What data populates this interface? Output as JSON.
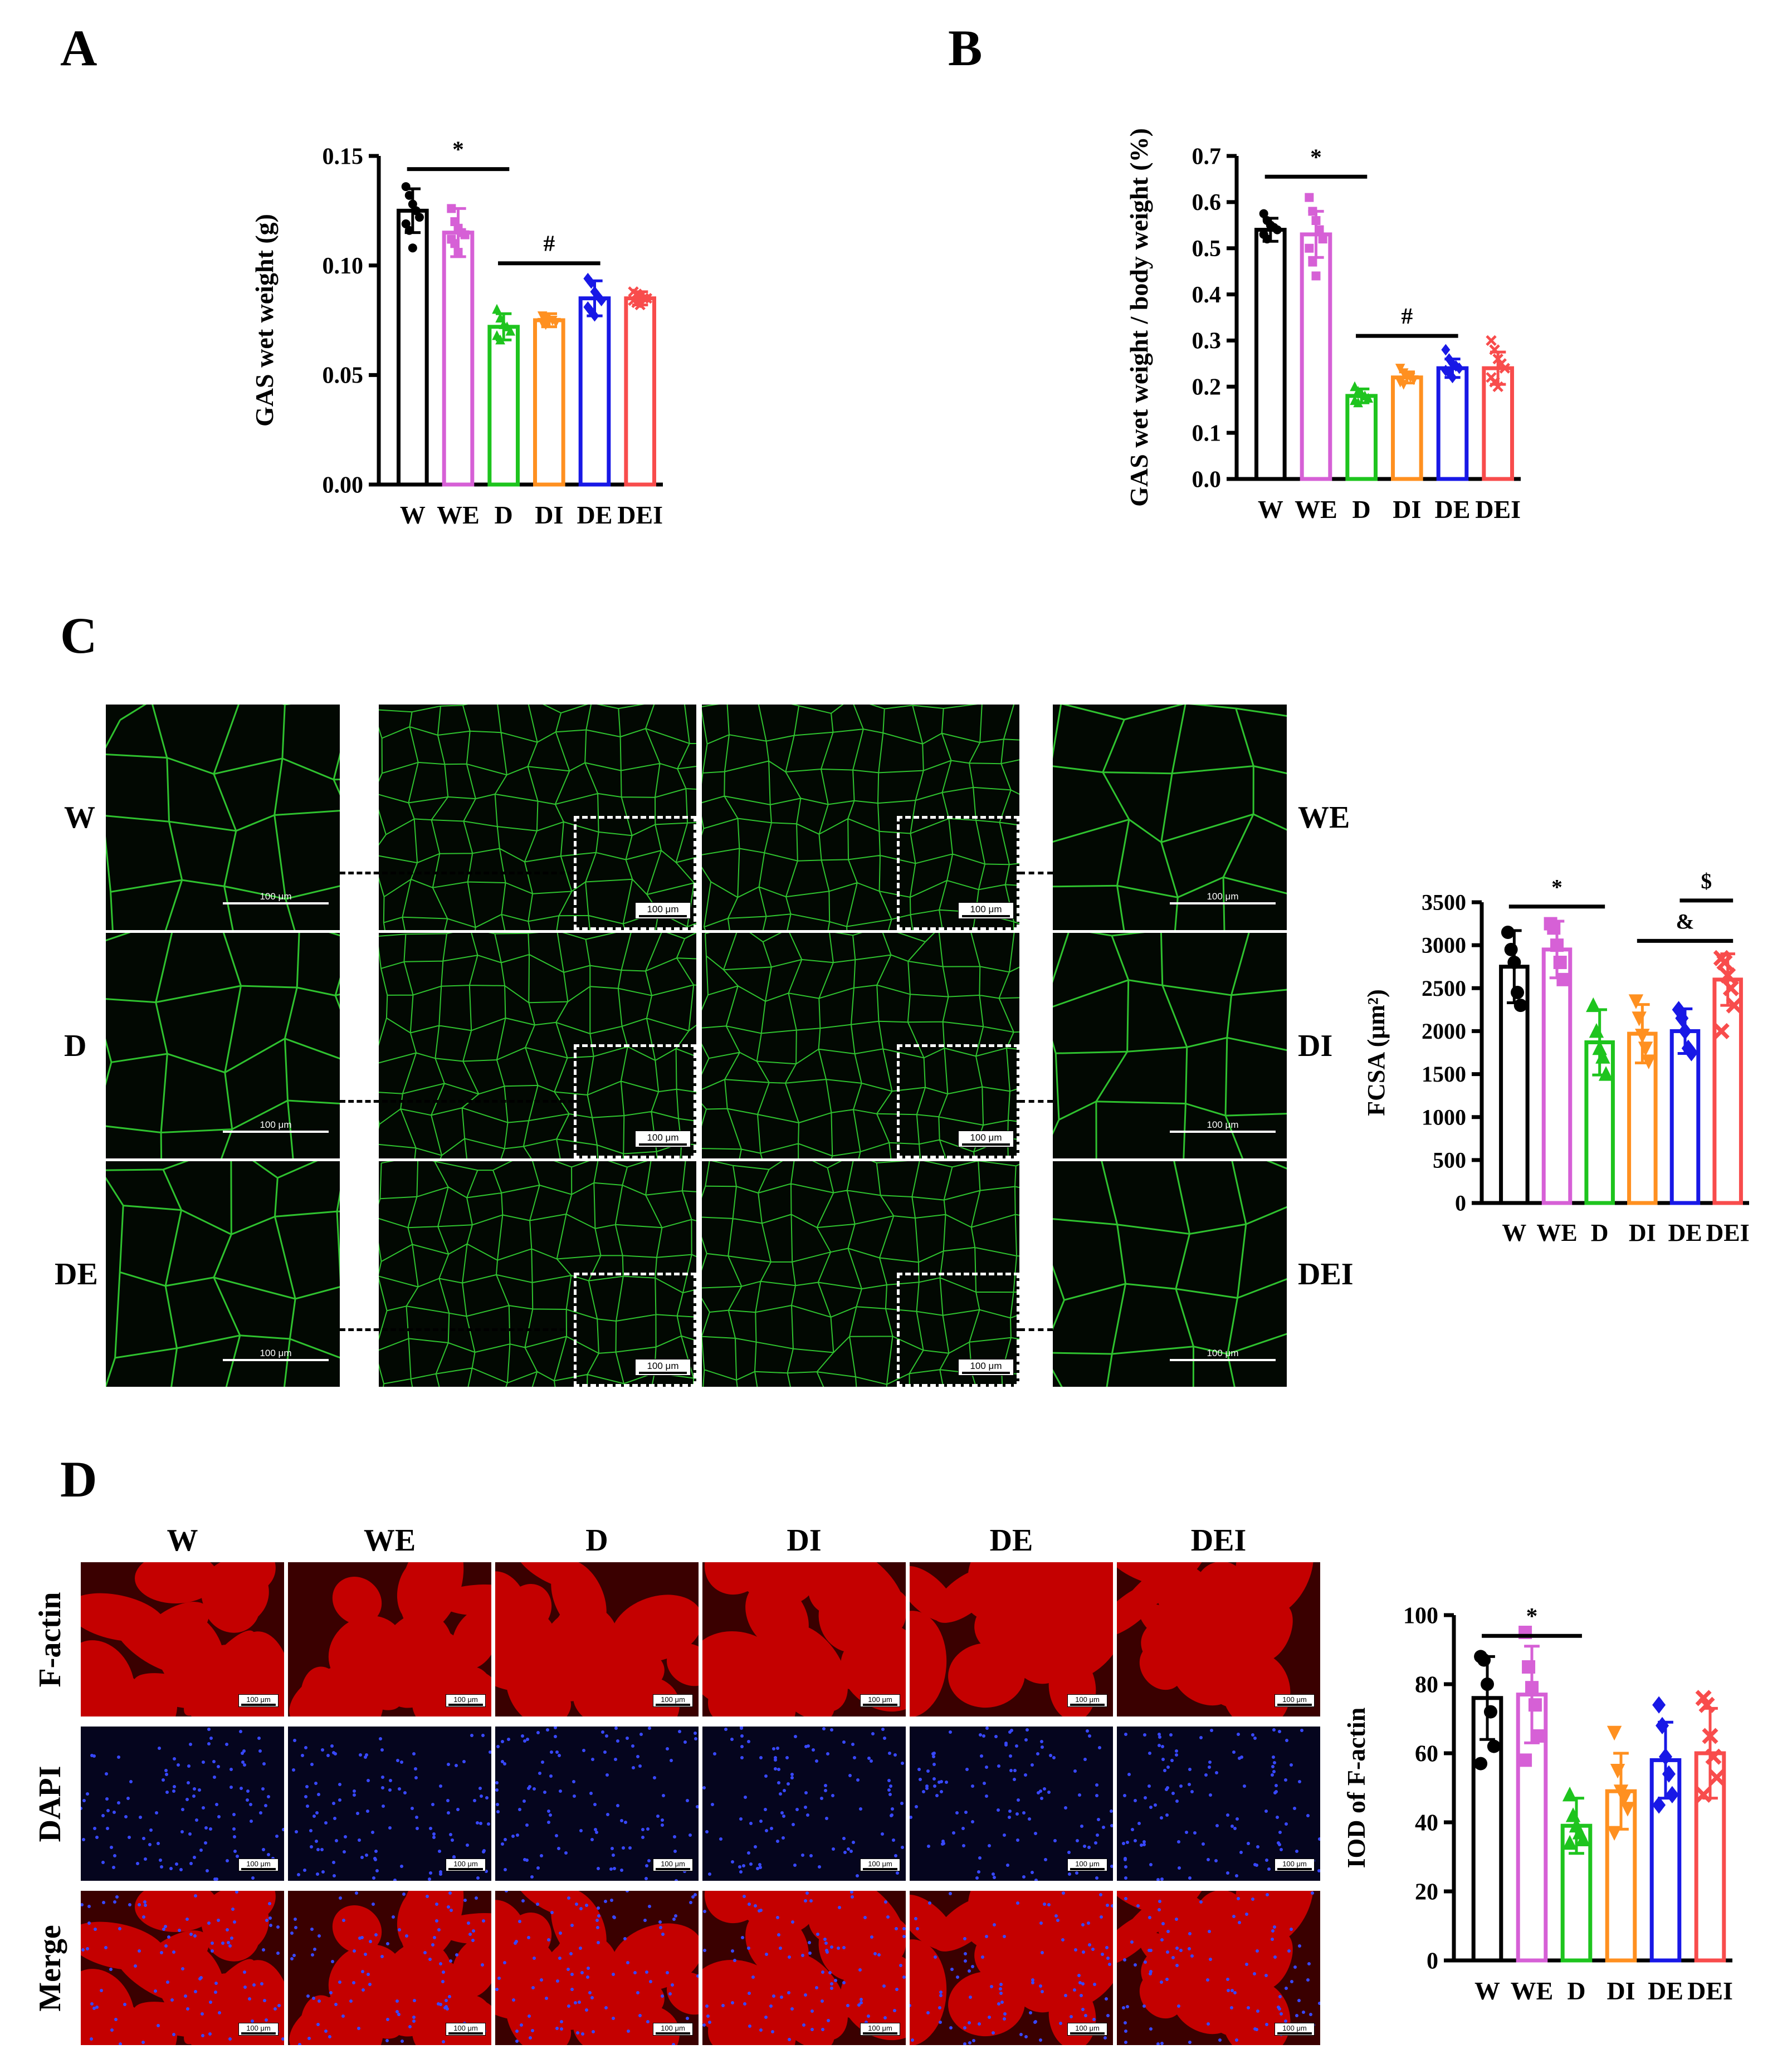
{
  "panel_labels": {
    "a": "A",
    "b": "B",
    "c": "C",
    "d": "D"
  },
  "colors": {
    "W": "#000000",
    "WE": "#d660d6",
    "D": "#1ec41e",
    "DI": "#ff9020",
    "DE": "#1818e6",
    "DEI": "#f84c4c",
    "fiber_bg": "#020802",
    "fiber_line": "#2fc22f",
    "factin_bg": "#c40000",
    "factin_dark": "#3a0000",
    "dapi_bg": "#05051e",
    "dapi_dot": "#3848ff"
  },
  "micro_c": {
    "row_labels": [
      "W",
      "D",
      "DE"
    ],
    "right_labels": [
      "WE",
      "DI",
      "DEI"
    ],
    "scale_text": "100 μm"
  },
  "micro_d": {
    "groups": [
      "W",
      "WE",
      "D",
      "DI",
      "DE",
      "DEI"
    ],
    "rows": [
      "F-actin",
      "DAPI",
      "Merge"
    ],
    "scale_text": "100 μm"
  },
  "chart_data": [
    {
      "type": "bar",
      "panel": "A",
      "categories": [
        "W",
        "WE",
        "D",
        "DI",
        "DE",
        "DEI"
      ],
      "tick_text": [
        "W",
        "WE",
        "D",
        "DI",
        "DE",
        "DEI"
      ],
      "values": [
        0.125,
        0.115,
        0.072,
        0.075,
        0.085,
        0.085
      ],
      "errors": [
        0.01,
        0.011,
        0.006,
        0.003,
        0.008,
        0.003
      ],
      "points": [
        [
          0.136,
          0.132,
          0.128,
          0.125,
          0.122,
          0.119,
          0.116,
          0.108
        ],
        [
          0.126,
          0.12,
          0.117,
          0.115,
          0.114,
          0.112,
          0.11,
          0.106
        ],
        [
          0.08,
          0.076,
          0.073,
          0.072,
          0.07,
          0.068,
          0.066
        ],
        [
          0.077,
          0.076,
          0.075,
          0.075,
          0.074,
          0.074,
          0.073
        ],
        [
          0.094,
          0.092,
          0.088,
          0.086,
          0.084,
          0.081,
          0.079,
          0.077
        ],
        [
          0.088,
          0.087,
          0.086,
          0.085,
          0.085,
          0.084,
          0.083,
          0.082
        ]
      ],
      "markers": [
        "circle",
        "square",
        "triangle",
        "triangle-down",
        "diamond",
        "x"
      ],
      "ylabel": "GAS wet weight (g)",
      "ylim": [
        0,
        0.15
      ],
      "yticks": [
        0,
        0.05,
        0.1,
        0.15
      ],
      "ytick_labels": [
        "0.00",
        "0.05",
        "0.10",
        "0.15"
      ],
      "annotations": [
        {
          "text": "*",
          "from": 0,
          "to": 2,
          "y": 0.144
        },
        {
          "text": "#",
          "from": 2,
          "to": 4,
          "y": 0.101
        }
      ]
    },
    {
      "type": "bar",
      "panel": "B",
      "categories": [
        "W",
        "WE",
        "D",
        "DI",
        "DE",
        "DEI"
      ],
      "tick_text": [
        "W",
        "WE",
        "D",
        "DI",
        "DE",
        "DEI"
      ],
      "values": [
        0.54,
        0.53,
        0.18,
        0.22,
        0.24,
        0.24
      ],
      "errors": [
        0.025,
        0.05,
        0.015,
        0.012,
        0.02,
        0.035
      ],
      "points": [
        [
          0.575,
          0.56,
          0.55,
          0.545,
          0.54,
          0.53,
          0.52
        ],
        [
          0.61,
          0.58,
          0.56,
          0.54,
          0.52,
          0.5,
          0.47,
          0.44
        ],
        [
          0.2,
          0.19,
          0.185,
          0.18,
          0.175,
          0.17,
          0.165
        ],
        [
          0.24,
          0.23,
          0.225,
          0.22,
          0.215,
          0.21,
          0.205
        ],
        [
          0.28,
          0.26,
          0.25,
          0.245,
          0.24,
          0.235,
          0.23,
          0.22
        ],
        [
          0.3,
          0.28,
          0.26,
          0.25,
          0.24,
          0.22,
          0.21,
          0.2
        ]
      ],
      "markers": [
        "circle",
        "square",
        "triangle",
        "triangle-down",
        "diamond",
        "x"
      ],
      "ylabel": "GAS wet weight / body weight  (%)",
      "ylim": [
        0,
        0.7
      ],
      "yticks": [
        0,
        0.1,
        0.2,
        0.3,
        0.4,
        0.5,
        0.6,
        0.7
      ],
      "ytick_labels": [
        "0.0",
        "0.1",
        "0.2",
        "0.3",
        "0.4",
        "0.5",
        "0.6",
        "0.7"
      ],
      "annotations": [
        {
          "text": "*",
          "from": 0,
          "to": 2,
          "y": 0.655
        },
        {
          "text": "#",
          "from": 2,
          "to": 4,
          "y": 0.31
        }
      ]
    },
    {
      "type": "bar",
      "panel": "C",
      "categories": [
        "W",
        "WE",
        "D",
        "DI",
        "DE",
        "DEI"
      ],
      "tick_text": [
        "W",
        "WE",
        "D",
        "DI",
        "DE",
        "DEI"
      ],
      "values": [
        2750,
        2950,
        1870,
        1970,
        2000,
        2600
      ],
      "errors": [
        420,
        330,
        380,
        340,
        260,
        300
      ],
      "points": [
        [
          3150,
          2950,
          2800,
          2450,
          2300
        ],
        [
          3250,
          3200,
          3000,
          2800,
          2600
        ],
        [
          2300,
          2000,
          1800,
          1700,
          1500
        ],
        [
          2350,
          2150,
          1950,
          1800,
          1650
        ],
        [
          2250,
          2150,
          2000,
          1800,
          1750
        ],
        [
          2850,
          2800,
          2650,
          2500,
          2300,
          2000
        ]
      ],
      "markers": [
        "circle",
        "square",
        "triangle",
        "triangle-down",
        "diamond",
        "x"
      ],
      "ylabel": "FCSA (μm²)",
      "ylim": [
        0,
        3500
      ],
      "yticks": [
        0,
        500,
        1000,
        1500,
        2000,
        2500,
        3000,
        3500
      ],
      "ytick_labels": [
        "0",
        "500",
        "1000",
        "1500",
        "2000",
        "2500",
        "3000",
        "3500"
      ],
      "annotations": [
        {
          "text": "*",
          "from": 0,
          "to": 2,
          "y": 3450
        },
        {
          "text": "&",
          "from": 3,
          "to": 5,
          "y": 3050
        },
        {
          "text": "$",
          "from": 4,
          "to": 5,
          "y": 3520
        }
      ]
    },
    {
      "type": "bar",
      "panel": "D",
      "categories": [
        "W",
        "WE",
        "D",
        "DI",
        "DE",
        "DEI"
      ],
      "tick_text": [
        "W",
        "WE",
        "D",
        "DI",
        "DE",
        "DEI"
      ],
      "values": [
        76,
        77,
        39,
        49,
        58,
        60
      ],
      "errors": [
        12,
        14,
        8,
        11,
        11,
        13
      ],
      "points": [
        [
          88,
          87,
          80,
          72,
          62,
          57
        ],
        [
          95,
          85,
          79,
          74,
          65,
          58
        ],
        [
          48,
          42,
          39,
          37,
          35,
          34
        ],
        [
          66,
          55,
          49,
          47,
          44,
          37
        ],
        [
          74,
          68,
          59,
          54,
          48,
          45
        ],
        [
          76,
          74,
          65,
          59,
          53,
          48
        ]
      ],
      "markers": [
        "circle",
        "square",
        "triangle",
        "triangle-down",
        "diamond",
        "x"
      ],
      "ylabel": "IOD of F-actin",
      "ylim": [
        0,
        100
      ],
      "yticks": [
        0,
        20,
        40,
        60,
        80,
        100
      ],
      "ytick_labels": [
        "0",
        "20",
        "40",
        "60",
        "80",
        "100"
      ],
      "annotations": [
        {
          "text": "*",
          "from": 0,
          "to": 2,
          "y": 94
        }
      ]
    }
  ]
}
